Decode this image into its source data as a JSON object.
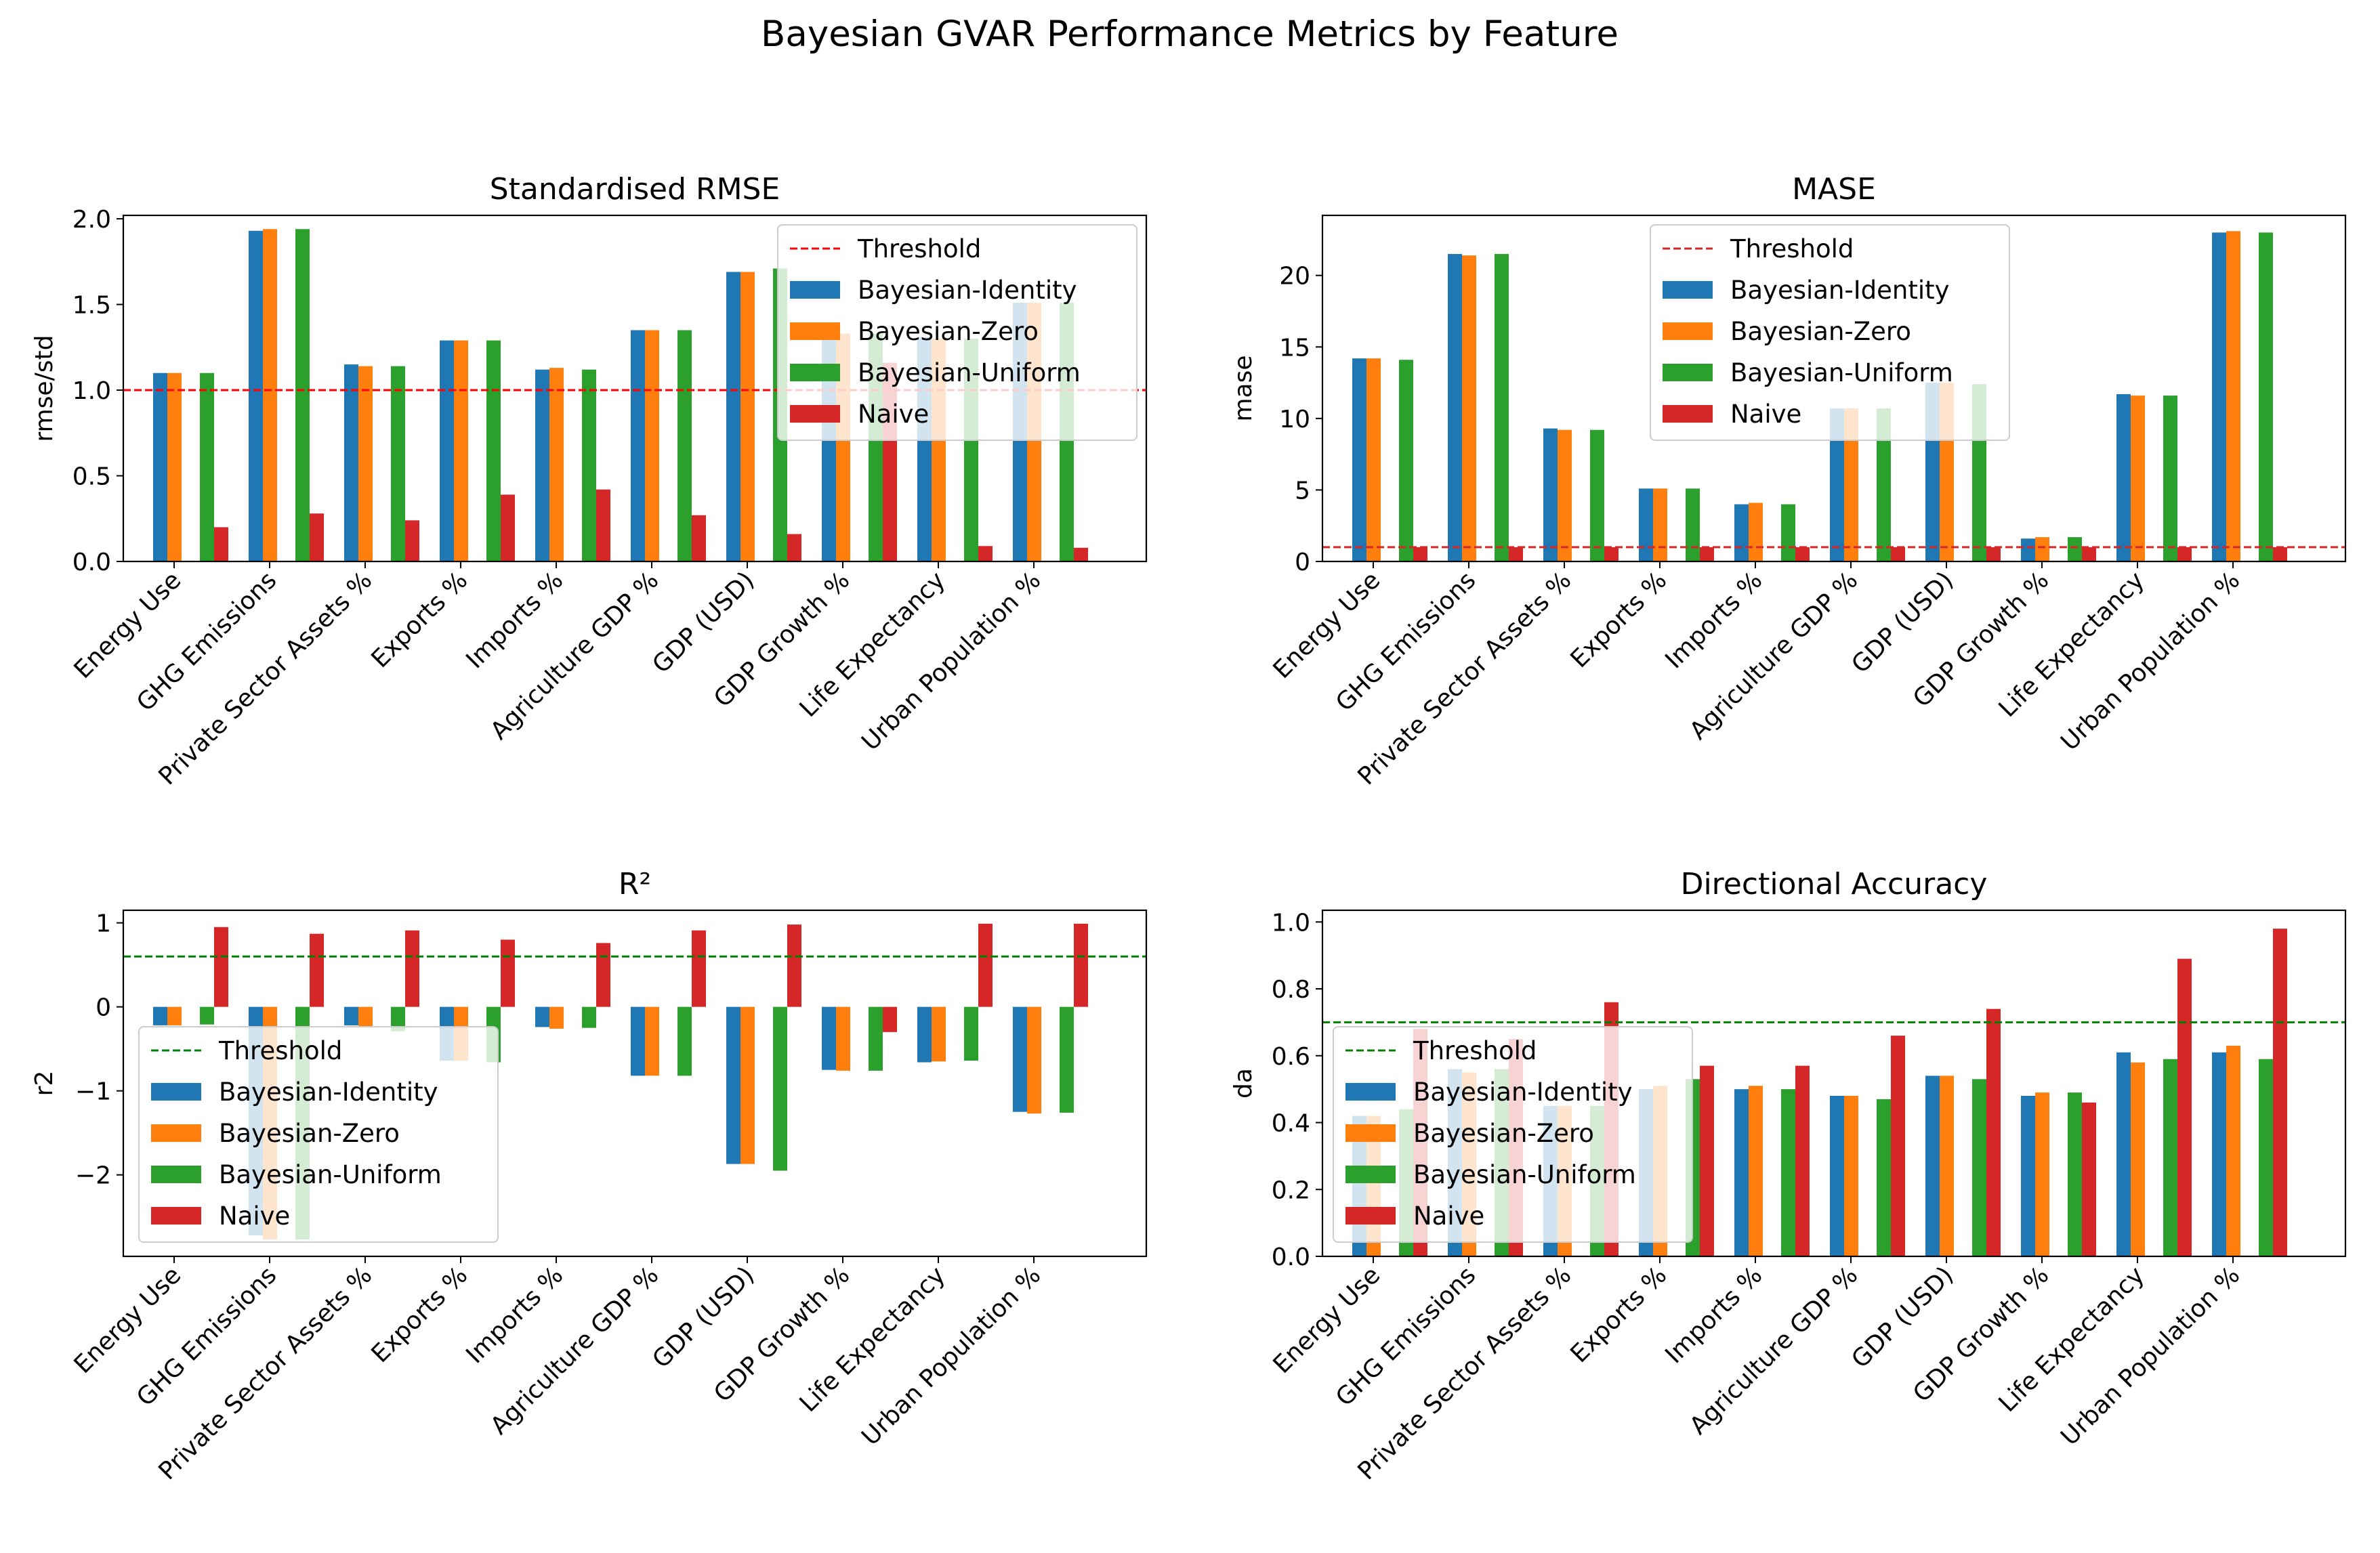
{
  "figure": {
    "title": "Bayesian GVAR Performance Metrics by Feature"
  },
  "legend_entries": [
    "Threshold",
    "Bayesian-Identity",
    "Bayesian-Zero",
    "Bayesian-Uniform",
    "Naive"
  ],
  "colors": {
    "identity": "#1f77b4",
    "zero": "#ff7f0e",
    "uniform": "#2ca02c",
    "naive": "#d62728",
    "threshold_rmse": "#ff0000",
    "threshold_mase": "#d62728",
    "threshold_green": "#008000"
  },
  "chart_data": [
    {
      "type": "bar",
      "title": "Standardised RMSE",
      "xlabel": "",
      "ylabel": "rmse/std",
      "ylim": [
        0,
        2.02
      ],
      "yticks": [
        "0.0",
        "0.5",
        "1.0",
        "1.5",
        "2.0"
      ],
      "threshold": 1.0,
      "legend": "top-right",
      "categories": [
        "Energy Use",
        "GHG Emissions",
        "Private Sector Assets %",
        "Exports %",
        "Imports %",
        "Agriculture GDP %",
        "GDP (USD)",
        "GDP Growth %",
        "Life Expectancy",
        "Urban Population %"
      ],
      "series": [
        {
          "name": "Bayesian-Identity",
          "values": [
            1.1,
            1.93,
            1.15,
            1.29,
            1.12,
            1.35,
            1.69,
            1.33,
            1.31,
            1.51
          ]
        },
        {
          "name": "Bayesian-Zero",
          "values": [
            1.1,
            1.94,
            1.14,
            1.29,
            1.13,
            1.35,
            1.69,
            1.33,
            1.3,
            1.51
          ]
        },
        {
          "name": "Bayesian-Uniform",
          "values": [
            1.1,
            1.94,
            1.14,
            1.29,
            1.12,
            1.35,
            1.71,
            1.33,
            1.3,
            1.51
          ]
        },
        {
          "name": "Naive",
          "values": [
            0.2,
            0.28,
            0.24,
            0.39,
            0.42,
            0.27,
            0.16,
            1.16,
            0.09,
            0.08
          ]
        }
      ]
    },
    {
      "type": "bar",
      "title": "MASE",
      "xlabel": "",
      "ylabel": "mase",
      "ylim": [
        0,
        24.2
      ],
      "yticks": [
        "0",
        "5",
        "10",
        "15",
        "20"
      ],
      "threshold": 1.0,
      "legend": "top-center",
      "categories": [
        "Energy Use",
        "GHG Emissions",
        "Private Sector Assets %",
        "Exports %",
        "Imports %",
        "Agriculture GDP %",
        "GDP (USD)",
        "GDP Growth %",
        "Life Expectancy",
        "Urban Population %"
      ],
      "series": [
        {
          "name": "Bayesian-Identity",
          "values": [
            14.2,
            21.5,
            9.3,
            5.1,
            4.0,
            10.7,
            12.5,
            1.6,
            11.7,
            23.0
          ]
        },
        {
          "name": "Bayesian-Zero",
          "values": [
            14.2,
            21.4,
            9.2,
            5.1,
            4.1,
            10.7,
            12.5,
            1.7,
            11.6,
            23.1
          ]
        },
        {
          "name": "Bayesian-Uniform",
          "values": [
            14.1,
            21.5,
            9.2,
            5.1,
            4.0,
            10.7,
            12.4,
            1.7,
            11.6,
            23.0
          ]
        },
        {
          "name": "Naive",
          "values": [
            1.0,
            1.0,
            1.0,
            1.0,
            1.0,
            1.0,
            1.0,
            1.0,
            1.0,
            1.0
          ]
        }
      ]
    },
    {
      "type": "bar",
      "title": "R²",
      "xlabel": "",
      "ylabel": "r2",
      "ylim": [
        -2.97,
        1.15
      ],
      "yticks": [
        "−2",
        "−1",
        "0",
        "1"
      ],
      "threshold": 0.6,
      "legend": "lower-left",
      "categories": [
        "Energy Use",
        "GHG Emissions",
        "Private Sector Assets %",
        "Exports %",
        "Imports %",
        "Agriculture GDP %",
        "GDP (USD)",
        "GDP Growth %",
        "Life Expectancy",
        "Urban Population %"
      ],
      "series": [
        {
          "name": "Bayesian-Identity",
          "values": [
            -0.22,
            -2.72,
            -0.22,
            -0.64,
            -0.24,
            -0.82,
            -1.87,
            -0.75,
            -0.66,
            -1.25
          ]
        },
        {
          "name": "Bayesian-Zero",
          "values": [
            -0.22,
            -2.77,
            -0.23,
            -0.64,
            -0.26,
            -0.82,
            -1.87,
            -0.76,
            -0.65,
            -1.27
          ]
        },
        {
          "name": "Bayesian-Uniform",
          "values": [
            -0.21,
            -2.77,
            -0.29,
            -0.66,
            -0.25,
            -0.82,
            -1.95,
            -0.76,
            -0.64,
            -1.26
          ]
        },
        {
          "name": "Naive",
          "values": [
            0.95,
            0.87,
            0.91,
            0.8,
            0.76,
            0.91,
            0.98,
            -0.3,
            0.99,
            0.99
          ]
        }
      ]
    },
    {
      "type": "bar",
      "title": "Directional Accuracy",
      "xlabel": "",
      "ylabel": "da",
      "ylim": [
        0,
        1.035
      ],
      "yticks": [
        "0.0",
        "0.2",
        "0.4",
        "0.6",
        "0.8",
        "1.0"
      ],
      "threshold": 0.7,
      "legend": "lower-left",
      "categories": [
        "Energy Use",
        "GHG Emissions",
        "Private Sector Assets %",
        "Exports %",
        "Imports %",
        "Agriculture GDP %",
        "GDP (USD)",
        "GDP Growth %",
        "Life Expectancy",
        "Urban Population %"
      ],
      "series": [
        {
          "name": "Bayesian-Identity",
          "values": [
            0.42,
            0.56,
            0.45,
            0.5,
            0.5,
            0.48,
            0.54,
            0.48,
            0.61,
            0.61
          ]
        },
        {
          "name": "Bayesian-Zero",
          "values": [
            0.42,
            0.55,
            0.45,
            0.51,
            0.51,
            0.48,
            0.54,
            0.49,
            0.58,
            0.63
          ]
        },
        {
          "name": "Bayesian-Uniform",
          "values": [
            0.44,
            0.56,
            0.45,
            0.53,
            0.5,
            0.47,
            0.53,
            0.49,
            0.59,
            0.59
          ]
        },
        {
          "name": "Naive",
          "values": [
            0.68,
            0.65,
            0.76,
            0.57,
            0.57,
            0.66,
            0.74,
            0.46,
            0.89,
            0.98
          ]
        }
      ]
    }
  ]
}
